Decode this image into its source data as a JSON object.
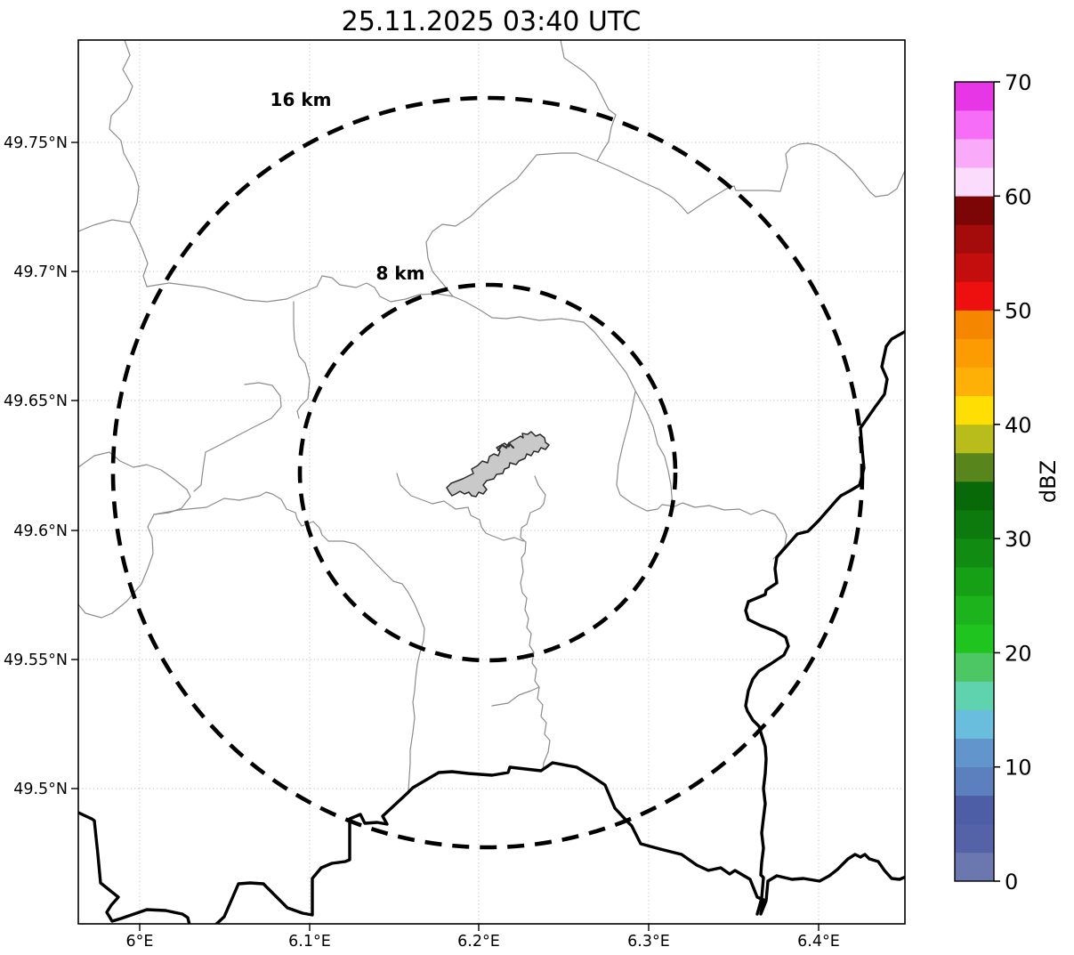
{
  "figure": {
    "title": "25.11.2025 03:40 UTC"
  },
  "map": {
    "x_tick_labels": [
      "6°E",
      "6.1°E",
      "6.2°E",
      "6.3°E",
      "6.4°E"
    ],
    "y_tick_labels": [
      "49.75°N",
      "49.7°N",
      "49.65°N",
      "49.6°N",
      "49.55°N",
      "49.5°N"
    ],
    "range_rings": [
      {
        "label": "16 km",
        "radius_km": 16
      },
      {
        "label": "8 km",
        "radius_km": 8
      }
    ]
  },
  "colorbar": {
    "label": "dBZ",
    "vmin": 0,
    "vmax": 70,
    "tick_values": [
      "0",
      "10",
      "20",
      "30",
      "40",
      "50",
      "60",
      "70"
    ],
    "band_width_dbz": 2.5,
    "colors_bottom_to_top": [
      "#6b78af",
      "#5463a7",
      "#4d5ea6",
      "#5b80bd",
      "#6295cb",
      "#69bede",
      "#5fd3ad",
      "#4cc763",
      "#1fc41f",
      "#1db31d",
      "#15a015",
      "#118b11",
      "#0c7a0c",
      "#086908",
      "#58851c",
      "#b9bd1b",
      "#ffdf03",
      "#feb006",
      "#fd9b02",
      "#f58700",
      "#ee0f0f",
      "#c40d0d",
      "#a40b0b",
      "#7c0606",
      "#fcdcfc",
      "#f9aaf9",
      "#f66ef6",
      "#e636e6"
    ]
  },
  "chart_data": {
    "type": "map",
    "title": "25.11.2025 03:40 UTC",
    "x_axis": {
      "tick_labels": [
        "6°E",
        "6.1°E",
        "6.2°E",
        "6.3°E",
        "6.4°E"
      ],
      "range_deg_east": [
        5.96,
        6.45
      ]
    },
    "y_axis": {
      "tick_labels": [
        "49.75°N",
        "49.7°N",
        "49.65°N",
        "49.6°N",
        "49.55°N",
        "49.5°N"
      ],
      "range_deg_north": [
        49.45,
        49.79
      ]
    },
    "grid": true,
    "legend_position": "none",
    "colorbar": {
      "label": "dBZ",
      "min": 0,
      "max": 70,
      "tick_step": 10,
      "discrete_band_dbz": 2.5,
      "orientation": "vertical-right"
    },
    "range_rings_km": [
      8,
      16
    ],
    "ring_center_approx_deg": {
      "lat_n": 49.62,
      "lon_e": 6.21
    },
    "visible_features": [
      "dashed black range rings labeled 16 km and 8 km",
      "gray filled airport-area polygon at ring center",
      "thin gray administrative boundary lines",
      "thick black country border / river lines (south and east)"
    ]
  }
}
